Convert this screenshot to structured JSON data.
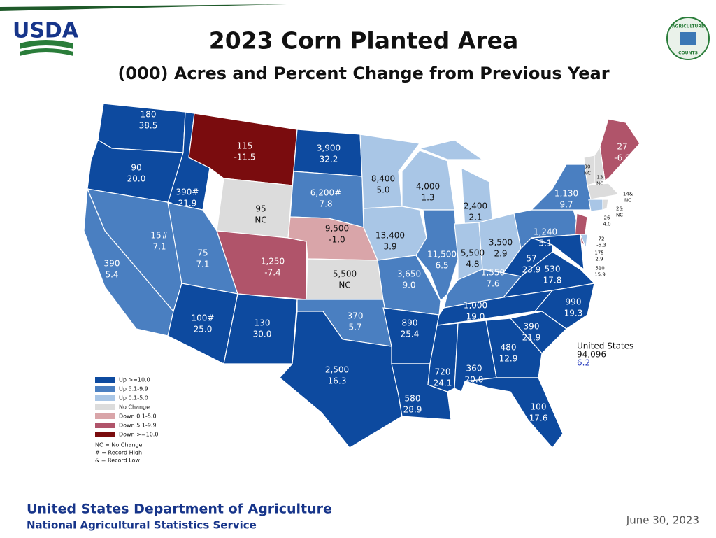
{
  "header": {
    "title": "2023 Corn Planted Area",
    "subtitle": "(000) Acres and Percent Change from Previous Year"
  },
  "logos": {
    "left": "USDA",
    "right_top": "AGRICULTURE",
    "right_bottom": "COUNTS"
  },
  "states": [
    {
      "acres": "180",
      "change": "38.5",
      "color": "#0d4a9f"
    },
    {
      "acres": "90",
      "change": "20.0",
      "color": "#0d4a9f"
    },
    {
      "acres": "390#",
      "change": "21.9",
      "color": "#0d4a9f"
    },
    {
      "acres": "115",
      "change": "-11.5",
      "color": "#7a0c0e"
    },
    {
      "acres": "3,900",
      "change": "32.2",
      "color": "#0d4a9f"
    },
    {
      "acres": "95",
      "change": "NC",
      "color": "#dcdcdc"
    },
    {
      "acres": "6,200#",
      "change": "7.8",
      "color": "#4a7fc1"
    },
    {
      "acres": "8,400",
      "change": "5.0",
      "color": "#a9c6e6"
    },
    {
      "acres": "4,000",
      "change": "1.3",
      "color": "#a9c6e6"
    },
    {
      "acres": "2,400",
      "change": "2.1",
      "color": "#a9c6e6"
    },
    {
      "acres": "15#",
      "change": "7.1",
      "color": "#4a7fc1"
    },
    {
      "acres": "390",
      "change": "5.4",
      "color": "#4a7fc1"
    },
    {
      "acres": "75",
      "change": "7.1",
      "color": "#4a7fc1"
    },
    {
      "acres": "1,250",
      "change": "-7.4",
      "color": "#b0546a"
    },
    {
      "acres": "9,500",
      "change": "-1.0",
      "color": "#d9a5a9"
    },
    {
      "acres": "13,400",
      "change": "3.9",
      "color": "#a9c6e6"
    },
    {
      "acres": "11,500",
      "change": "6.5",
      "color": "#4a7fc1"
    },
    {
      "acres": "5,500",
      "change": "4.8",
      "color": "#a9c6e6"
    },
    {
      "acres": "3,500",
      "change": "2.9",
      "color": "#a9c6e6"
    },
    {
      "acres": "5,500",
      "change": "NC",
      "color": "#dcdcdc"
    },
    {
      "acres": "3,650",
      "change": "9.0",
      "color": "#4a7fc1"
    },
    {
      "acres": "1,550",
      "change": "7.6",
      "color": "#4a7fc1"
    },
    {
      "acres": "57",
      "change": "23.9",
      "color": "#0d4a9f"
    },
    {
      "acres": "530",
      "change": "17.8",
      "color": "#0d4a9f"
    },
    {
      "acres": "1,240",
      "change": "5.1",
      "color": "#4a7fc1"
    },
    {
      "acres": "1,130",
      "change": "9.7",
      "color": "#4a7fc1"
    },
    {
      "acres": "100#",
      "change": "25.0",
      "color": "#0d4a9f"
    },
    {
      "acres": "130",
      "change": "30.0",
      "color": "#0d4a9f"
    },
    {
      "acres": "370",
      "change": "5.7",
      "color": "#4a7fc1"
    },
    {
      "acres": "2,500",
      "change": "16.3",
      "color": "#0d4a9f"
    },
    {
      "acres": "890",
      "change": "25.4",
      "color": "#0d4a9f"
    },
    {
      "acres": "1,000",
      "change": "19.0",
      "color": "#0d4a9f"
    },
    {
      "acres": "990",
      "change": "19.3",
      "color": "#0d4a9f"
    },
    {
      "acres": "390",
      "change": "21.9",
      "color": "#0d4a9f"
    },
    {
      "acres": "580",
      "change": "28.9",
      "color": "#0d4a9f"
    },
    {
      "acres": "720",
      "change": "24.1",
      "color": "#0d4a9f"
    },
    {
      "acres": "360",
      "change": "20.0",
      "color": "#0d4a9f"
    },
    {
      "acres": "480",
      "change": "12.9",
      "color": "#0d4a9f"
    },
    {
      "acres": "100",
      "change": "17.6",
      "color": "#0d4a9f"
    },
    {
      "acres": "27",
      "change": "-6.9",
      "color": "#b0546a"
    },
    {
      "acres": "90",
      "change": "NC",
      "color": "#dcdcdc"
    },
    {
      "acres": "13",
      "change": "NC",
      "color": "#dcdcdc"
    },
    {
      "acres": "14&",
      "change": "NC",
      "color": "#dcdcdc"
    },
    {
      "acres": "2&",
      "change": "NC",
      "color": "#dcdcdc"
    },
    {
      "acres": "26",
      "change": "4.0",
      "color": "#a9c6e6"
    },
    {
      "acres": "72",
      "change": "-5.3",
      "color": "#b0546a"
    },
    {
      "acres": "175",
      "change": "2.9",
      "color": "#a9c6e6"
    },
    {
      "acres": "510",
      "change": "15.9",
      "color": "#0d4a9f"
    }
  ],
  "national": {
    "name": "United States",
    "acres": "94,096",
    "change": "6.2"
  },
  "legend": [
    {
      "label": "Up >=10.0",
      "color": "#0d4a9f"
    },
    {
      "label": "Up 5.1-9.9",
      "color": "#4a7fc1"
    },
    {
      "label": "Up 0.1-5.0",
      "color": "#a9c6e6"
    },
    {
      "label": "No Change",
      "color": "#dcdcdc"
    },
    {
      "label": "Down 0.1-5.0",
      "color": "#d9a5a9"
    },
    {
      "label": "Down 5.1-9.9",
      "color": "#b0546a"
    },
    {
      "label": "Down >=10.0",
      "color": "#7a0c0e"
    }
  ],
  "notes": [
    "NC = No Change",
    "# = Record High",
    "& = Record Low"
  ],
  "footer": {
    "org": "United States Department of Agriculture",
    "service": "National Agricultural Statistics Service",
    "date": "June 30, 2023"
  }
}
